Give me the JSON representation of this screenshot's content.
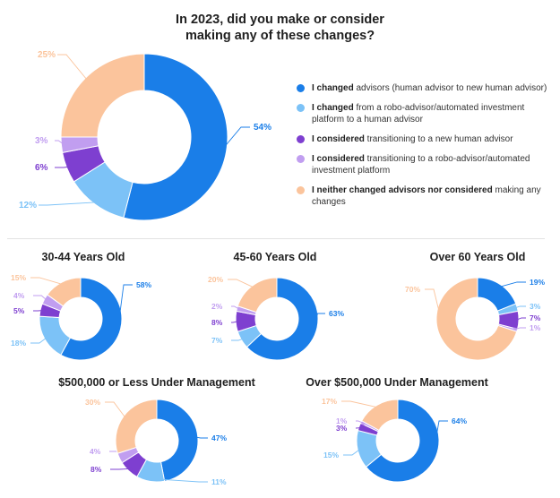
{
  "colors": {
    "changed_human": "#1a7ee8",
    "changed_robo": "#7cc2f7",
    "considered_human": "#7e3fd0",
    "considered_robo": "#c19ef0",
    "neither": "#fbc49c",
    "divider": "#e3e3e3"
  },
  "main_title": {
    "line1": "In 2023, did you make or consider",
    "line2": "making any of these changes?"
  },
  "legend": [
    {
      "bold": "I changed",
      "text": " advisors (human advisor to new human advisor)",
      "color_key": "changed_human"
    },
    {
      "bold": "I changed",
      "text": " from a robo-advisor/automated investment platform to a human advisor",
      "color_key": "changed_robo"
    },
    {
      "bold": "I considered",
      "text": " transitioning to a new human advisor",
      "color_key": "considered_human"
    },
    {
      "bold": "I considered",
      "text": " transitioning to a robo-advisor/automated investment platform",
      "color_key": "considered_robo"
    },
    {
      "bold": "I neither changed advisors nor considered",
      "text": " making any changes",
      "color_key": "neither"
    }
  ],
  "chart_data": [
    {
      "type": "pie",
      "title": "",
      "categories": [
        "I changed advisors (human advisor to new human advisor)",
        "I changed from a robo-advisor/automated investment platform to a human advisor",
        "I considered transitioning to a new human advisor",
        "I considered transitioning to a robo-advisor/automated investment platform",
        "I neither changed advisors nor considered making any changes"
      ],
      "values": [
        54,
        12,
        6,
        3,
        25
      ],
      "labels": [
        "54%",
        "12%",
        "6%",
        "3%",
        "25%"
      ]
    },
    {
      "type": "pie",
      "title": "30-44 Years Old",
      "categories": [
        "I changed advisors",
        "I changed from robo-advisor",
        "I considered new human advisor",
        "I considered robo-advisor",
        "I neither changed nor considered"
      ],
      "values": [
        58,
        18,
        5,
        4,
        15
      ],
      "labels": [
        "58%",
        "18%",
        "5%",
        "4%",
        "15%"
      ]
    },
    {
      "type": "pie",
      "title": "45-60 Years Old",
      "categories": [
        "I changed advisors",
        "I changed from robo-advisor",
        "I considered new human advisor",
        "I considered robo-advisor",
        "I neither changed nor considered"
      ],
      "values": [
        63,
        7,
        8,
        2,
        20
      ],
      "labels": [
        "63%",
        "7%",
        "8%",
        "2%",
        "20%"
      ]
    },
    {
      "type": "pie",
      "title": "Over 60 Years Old",
      "categories": [
        "I changed advisors",
        "I changed from robo-advisor",
        "I considered new human advisor",
        "I considered robo-advisor",
        "I neither changed nor considered"
      ],
      "values": [
        19,
        3,
        7,
        1,
        70
      ],
      "labels": [
        "19%",
        "3%",
        "7%",
        "1%",
        "70%"
      ]
    },
    {
      "type": "pie",
      "title": "$500,000 or Less Under Management",
      "categories": [
        "I changed advisors",
        "I changed from robo-advisor",
        "I considered new human advisor",
        "I considered robo-advisor",
        "I neither changed nor considered"
      ],
      "values": [
        47,
        11,
        8,
        4,
        30
      ],
      "labels": [
        "47%",
        "11%",
        "8%",
        "4%",
        "30%"
      ]
    },
    {
      "type": "pie",
      "title": "Over $500,000 Under Management",
      "categories": [
        "I changed advisors",
        "I changed from robo-advisor",
        "I considered new human advisor",
        "I considered robo-advisor",
        "I neither changed nor considered"
      ],
      "values": [
        64,
        15,
        3,
        1,
        17
      ],
      "labels": [
        "64%",
        "15%",
        "3%",
        "1%",
        "17%"
      ]
    }
  ]
}
